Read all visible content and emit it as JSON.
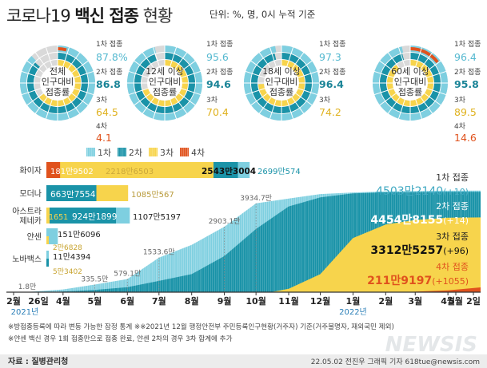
{
  "header": {
    "title_main": "코로나19",
    "title_highlight": "백신 접종",
    "title_rest": "현황",
    "units": "단위: %, 명, 0시 누적 기준"
  },
  "donuts": [
    {
      "label": [
        "전체",
        "인구대비",
        "접종률"
      ],
      "d1_label": "1차 접종",
      "d1": "87.8%",
      "d2_label": "2차 접종",
      "d2": "86.8",
      "d3_label": "3차",
      "d3": "64.5",
      "d4_label": "4차",
      "d4": "4.1"
    },
    {
      "label": [
        "12세 이상",
        "인구대비",
        "접종률"
      ],
      "d1_label": "1차 접종",
      "d1": "95.6",
      "d2_label": "2차 접종",
      "d2": "94.6",
      "d3_label": "3차",
      "d3": "70.4"
    },
    {
      "label": [
        "18세 이상",
        "인구대비",
        "접종률"
      ],
      "d1_label": "1차 접종",
      "d1": "97.3",
      "d2_label": "2차 접종",
      "d2": "96.4",
      "d3_label": "3차",
      "d3": "74.2"
    },
    {
      "label": [
        "60세 이상",
        "인구대비",
        "접종률"
      ],
      "d1_label": "1차 접종",
      "d1": "96.4",
      "d2_label": "2차 접종",
      "d2": "95.8",
      "d3_label": "3차",
      "d3": "89.5",
      "d4_label": "4차",
      "d4": "14.6"
    }
  ],
  "legend": [
    "1차",
    "2차",
    "3차",
    "4차"
  ],
  "vaccines": [
    {
      "name": [
        "화이자"
      ],
      "labels": {
        "d4": "181만9502",
        "d3": "2218만6503",
        "d2": "2543만3004",
        "d1": "2699만574"
      }
    },
    {
      "name": [
        "모더나"
      ],
      "labels": {
        "d2": "663만7554",
        "d3": "1085만567"
      }
    },
    {
      "name": [
        "아스트라",
        "제네카"
      ],
      "labels": {
        "d3": "1651",
        "d2": "924만1899",
        "d1": "1107만5197"
      }
    },
    {
      "name": [
        "얀센"
      ],
      "labels": {
        "d1": "151만6096"
      }
    },
    {
      "name": [
        "노바백스"
      ],
      "labels": {
        "d1": "11만4394"
      }
    }
  ],
  "janssen_booster": "2만6828",
  "novavax_second": "5만3402",
  "cum_labels": [
    "1.8만",
    "335.5만",
    "579.1만",
    "1533.6만",
    "2903.1만",
    "3934.7만"
  ],
  "totals": [
    {
      "label": "1차 접종",
      "value": "4503만2140",
      "delta": "(+10)"
    },
    {
      "label": "2차 접종",
      "value": "4454만8155",
      "delta": "(+14)"
    },
    {
      "label": "3차 접종",
      "value": "3312만5257",
      "delta": "(+96)"
    },
    {
      "label": "4차 접종",
      "value": "211만9197",
      "delta": "(+1055)"
    }
  ],
  "x_ticks": [
    "2월",
    "26일",
    "4월",
    "5월",
    "6월",
    "7월",
    "8월",
    "9월",
    "10월",
    "11월",
    "12월",
    "1월",
    "2월",
    "3월",
    "4월",
    "5월",
    "2일"
  ],
  "x_years": [
    "2021년",
    "2022년"
  ],
  "notes": [
    "※방접종등록에 따라 변동 가능한 잠정 통계",
    "※※2021년 12월 행정안전부 주민등록인구현황(거주자) 기준(거주불명자, 재외국민 제외)",
    "※얀센 백신 경우 1회 접종만으로 접종 완료, 얀센 2차의 경우 3차 합계에 추가"
  ],
  "source": "자료 : 질병관리청",
  "credit": "22.05.02 전진우 그래픽 기자 618tue@newsis.com",
  "watermark": "NEWSIS",
  "colors": {
    "dose1": "#7ecfe0",
    "dose2": "#1a93a8",
    "dose3": "#f7d44c",
    "dose4": "#e0521d",
    "grey": "#d9d9d9"
  },
  "chart_data": [
    {
      "type": "pie",
      "title": "",
      "donuts": [
        {
          "group": "전체 인구대비 접종률",
          "dose1": 87.8,
          "dose2": 86.8,
          "dose3": 64.5,
          "dose4": 4.1
        },
        {
          "group": "12세 이상 인구대비 접종률",
          "dose1": 95.6,
          "dose2": 94.6,
          "dose3": 70.4
        },
        {
          "group": "18세 이상 인구대비 접종률",
          "dose1": 97.3,
          "dose2": 96.4,
          "dose3": 74.2
        },
        {
          "group": "60세 이상 인구대비 접종률",
          "dose1": 96.4,
          "dose2": 95.8,
          "dose3": 89.5,
          "dose4": 14.6
        }
      ]
    },
    {
      "type": "bar",
      "orientation": "horizontal",
      "categories": [
        "화이자",
        "모더나",
        "아스트라제네카",
        "얀센",
        "노바백스"
      ],
      "unit": "명",
      "series": [
        {
          "name": "1차",
          "values": [
            26990574,
            null,
            11075197,
            1516096,
            114394
          ]
        },
        {
          "name": "2차",
          "values": [
            25433004,
            6637554,
            9241899,
            null,
            53402
          ]
        },
        {
          "name": "3차",
          "values": [
            22186503,
            10850567,
            1651,
            26828,
            null
          ]
        },
        {
          "name": "4차",
          "values": [
            1819502,
            null,
            null,
            null,
            null
          ]
        }
      ]
    },
    {
      "type": "area",
      "x_range": [
        "2021-02-26",
        "2022-05-02"
      ],
      "unit": "명",
      "series": [
        {
          "name": "1차",
          "x": [
            "2021-02-26",
            "2021-04-01",
            "2021-05-01",
            "2021-06-01",
            "2021-07-01",
            "2021-08-01",
            "2021-09-01",
            "2021-10-01",
            "2021-11-01",
            "2021-12-01",
            "2022-01-01",
            "2022-02-01",
            "2022-03-01",
            "2022-04-01",
            "2022-05-02"
          ],
          "y": [
            18000,
            1200000,
            3355000,
            5791000,
            15336000,
            21000000,
            29031000,
            39347000,
            41500000,
            43500000,
            44200000,
            44700000,
            44900000,
            45000000,
            45032140
          ]
        },
        {
          "name": "2차",
          "x": [
            "2021-03-20",
            "2021-05-01",
            "2021-06-01",
            "2021-07-01",
            "2021-08-01",
            "2021-09-01",
            "2021-10-01",
            "2021-11-01",
            "2021-12-01",
            "2022-01-01",
            "2022-02-01",
            "2022-03-01",
            "2022-04-01",
            "2022-05-02"
          ],
          "y": [
            0,
            1000000,
            2200000,
            5000000,
            8000000,
            16000000,
            28000000,
            38000000,
            42000000,
            43800000,
            44300000,
            44400000,
            44500000,
            44548155
          ]
        },
        {
          "name": "3차",
          "x": [
            "2021-10-15",
            "2021-11-01",
            "2021-12-01",
            "2022-01-01",
            "2022-02-01",
            "2022-03-01",
            "2022-04-01",
            "2022-05-02"
          ],
          "y": [
            0,
            1500000,
            8000000,
            24000000,
            30000000,
            32000000,
            33000000,
            33125257
          ]
        },
        {
          "name": "4차",
          "x": [
            "2022-02-20",
            "2022-03-01",
            "2022-04-01",
            "2022-05-02"
          ],
          "y": [
            0,
            200000,
            800000,
            2119197
          ]
        }
      ]
    }
  ]
}
